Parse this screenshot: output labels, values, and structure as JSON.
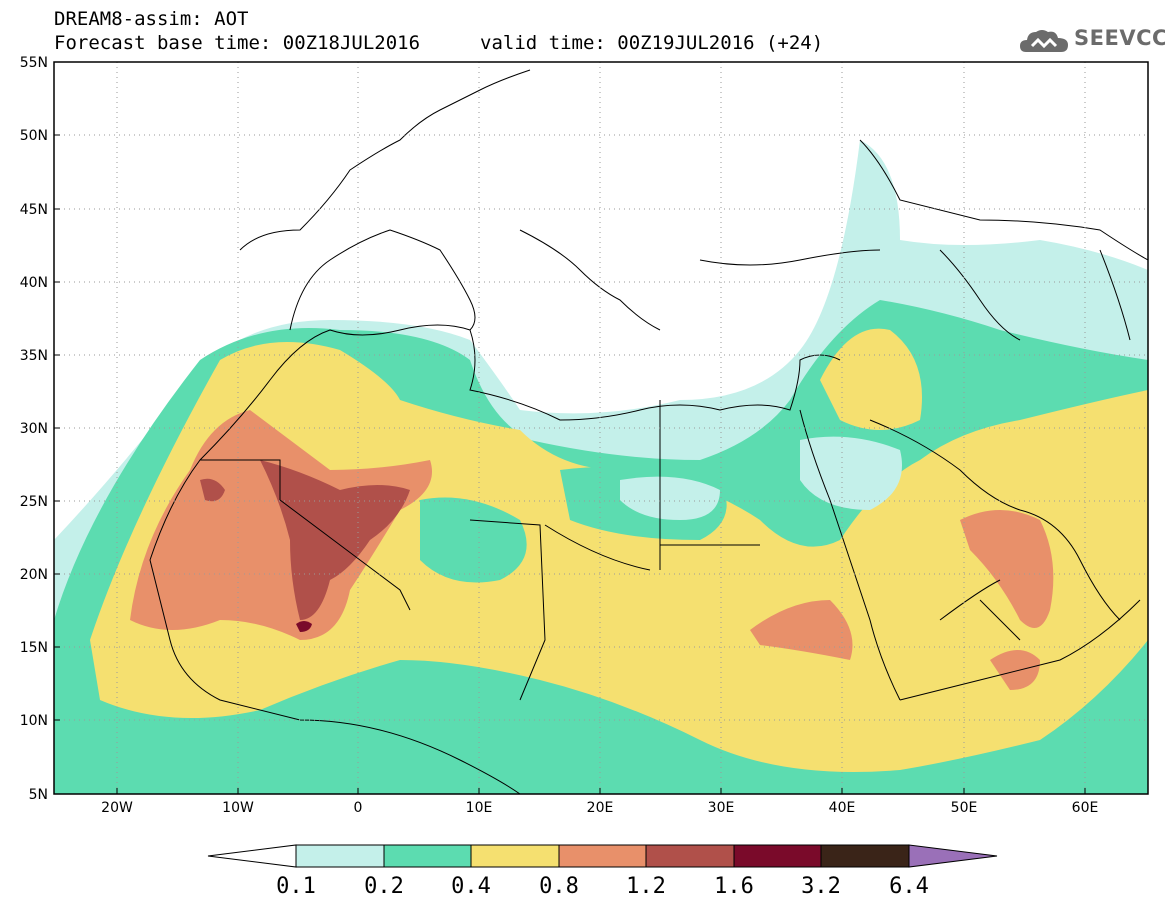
{
  "header": {
    "title": "DREAM8-assim: AOT",
    "base_time": "Forecast base time: 00Z18JUL2016",
    "valid_time": "valid time: 00Z19JUL2016 (+24)",
    "logo_text": "SEEVCCC",
    "logo_icon": "cloud-icon"
  },
  "axes": {
    "lat_labels": [
      "55N",
      "50N",
      "45N",
      "40N",
      "35N",
      "30N",
      "25N",
      "20N",
      "15N",
      "10N",
      "5N"
    ],
    "lon_labels": [
      "20W",
      "10W",
      "0",
      "10E",
      "20E",
      "30E",
      "40E",
      "50E",
      "60E"
    ]
  },
  "legend": {
    "labels": [
      "0.1",
      "0.2",
      "0.4",
      "0.8",
      "1.2",
      "1.6",
      "3.2",
      "6.4"
    ],
    "colors": [
      "#ffffff",
      "#c4f0ea",
      "#5cdcb0",
      "#f5e070",
      "#e8906a",
      "#b0504a",
      "#7a0a2a",
      "#3a2418",
      "#9a70b8"
    ]
  },
  "map_colors": {
    "land_line": "#000000",
    "grid_dot": "#9a9a9a"
  }
}
